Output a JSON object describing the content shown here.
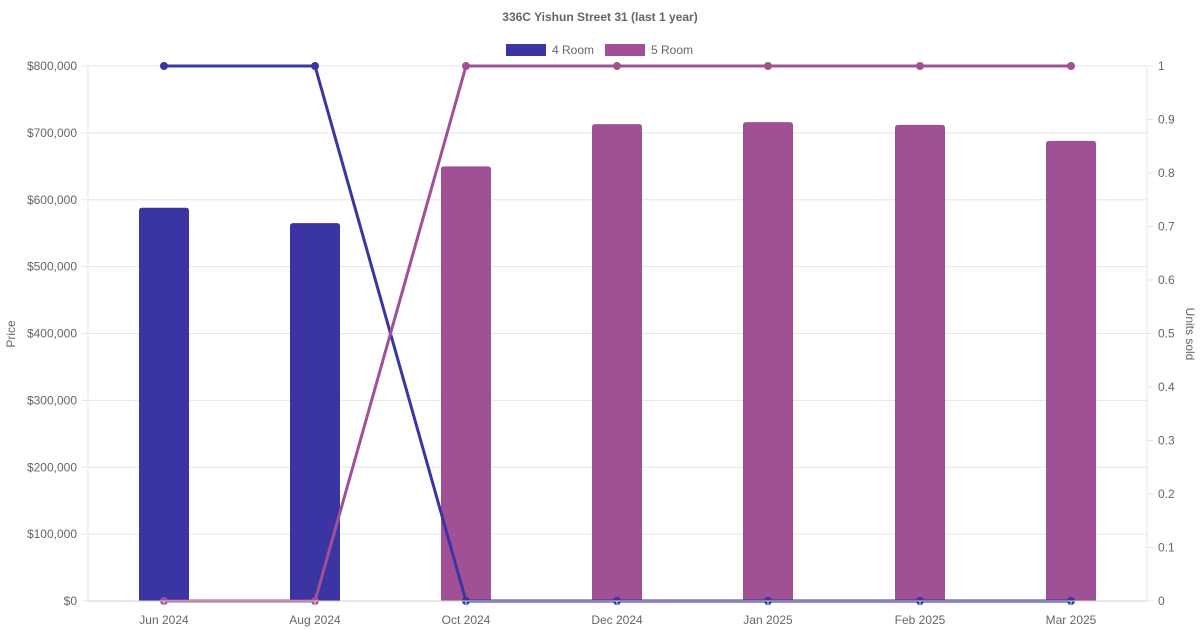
{
  "chart_data": {
    "type": "bar",
    "title": "336C Yishun Street 31 (last 1 year)",
    "categories": [
      "Jun 2024",
      "Aug 2024",
      "Oct 2024",
      "Dec 2024",
      "Jan 2025",
      "Feb 2025",
      "Mar 2025"
    ],
    "series": [
      {
        "name": "4 Room",
        "color": "#3a35a2",
        "price_values": [
          588000,
          565000,
          null,
          null,
          null,
          null,
          null
        ],
        "units_sold": [
          1,
          1,
          0,
          0,
          0,
          0,
          0
        ]
      },
      {
        "name": "5 Room",
        "color": "#a05195",
        "price_values": [
          null,
          null,
          650000,
          713000,
          716000,
          712000,
          688000
        ],
        "units_sold": [
          0,
          0,
          1,
          1,
          1,
          1,
          1
        ]
      }
    ],
    "y_left": {
      "label": "Price",
      "ylim": [
        0,
        800000
      ],
      "ticks": [
        "$0",
        "$100,000",
        "$200,000",
        "$300,000",
        "$400,000",
        "$500,000",
        "$600,000",
        "$700,000",
        "$800,000"
      ]
    },
    "y_right": {
      "label": "Units sold",
      "ylim": [
        0,
        1
      ],
      "ticks": [
        "0",
        "0.1",
        "0.2",
        "0.3",
        "0.4",
        "0.5",
        "0.6",
        "0.7",
        "0.8",
        "0.9",
        "1"
      ]
    },
    "legend_position": "top-center",
    "grid": true
  }
}
